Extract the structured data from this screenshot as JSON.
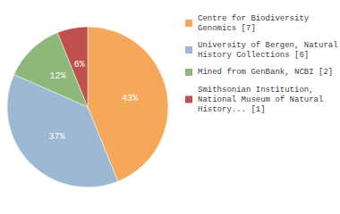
{
  "chart_data": {
    "type": "pie",
    "categories": [
      "Centre for Biodiversity\nGenomics [7]",
      "University of Bergen, Natural\nHistory Collections [6]",
      "Mined from GenBank, NCBI [2]",
      "Smithsonian Institution,\nNational Museum of Natural\nHistory... [1]"
    ],
    "values": [
      43,
      37,
      12,
      6
    ],
    "value_labels": [
      "43%",
      "37%",
      "12%",
      "6%"
    ],
    "colors": [
      "#f5a85a",
      "#9db8d2",
      "#8db87a",
      "#c0504d"
    ],
    "data_labels": true,
    "legend": "right"
  }
}
